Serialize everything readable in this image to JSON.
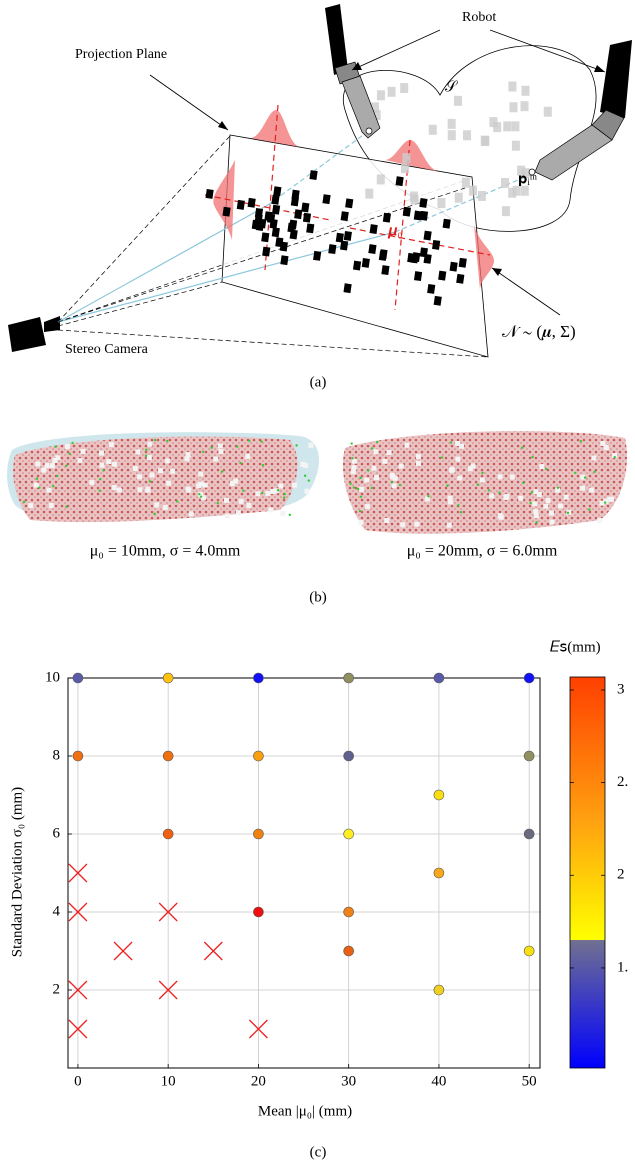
{
  "figure_a": {
    "labels": {
      "projection_plane": "Projection Plane",
      "robot": "Robot",
      "surface": "𝒮",
      "camera": "Stereo Camera",
      "point": "𝐩ᵢᵐ",
      "distribution": "𝒩 ∼ (𝝁, Σ)",
      "mean": "𝝁₀"
    },
    "caption": "(a)"
  },
  "figure_b": {
    "captions": [
      "μ₀ = 10mm, σ = 4.0mm",
      "μ₀ = 20mm, σ = 6.0mm"
    ],
    "caption": "(b)"
  },
  "chart_data": {
    "type": "scatter",
    "caption": "(c)",
    "x_label": "Mean |μ₀| (mm)",
    "y_label": "Standard Deviation σ₀ (mm)",
    "xlim": [
      -1.1,
      51.2
    ],
    "ylim": [
      0,
      10
    ],
    "xticks": [
      0,
      10,
      20,
      30,
      40,
      50
    ],
    "yticks": [
      2,
      4,
      6,
      8,
      10
    ],
    "grid": true,
    "series": [
      {
        "marker": "circle",
        "x": [
          0,
          10,
          20,
          30,
          40,
          50,
          0,
          10,
          20,
          30,
          50,
          40,
          10,
          20,
          30,
          50,
          40,
          20,
          30,
          30,
          50,
          40
        ],
        "y": [
          10,
          10,
          10,
          10,
          10,
          10,
          8,
          8,
          8,
          8,
          8,
          7,
          6,
          6,
          6,
          6,
          5,
          4,
          4,
          3,
          3,
          2
        ],
        "colors": [
          "#5a5aaa",
          "#ffc010",
          "#1010ff",
          "#8f8f60",
          "#5a5aaa",
          "#1010ff",
          "#f07010",
          "#f07010",
          "#f8a010",
          "#606090",
          "#909060",
          "#f8e010",
          "#f06010",
          "#f08010",
          "#ffee20",
          "#6a6a80",
          "#f8a818",
          "#ee1010",
          "#f08018",
          "#e86010",
          "#f8e010",
          "#f0d020"
        ]
      },
      {
        "marker": "cross",
        "color": "#ee2020",
        "x": [
          0,
          0,
          0,
          0,
          5,
          10,
          10,
          15,
          20
        ],
        "y": [
          5,
          4,
          2,
          1,
          3,
          4,
          2,
          3,
          1
        ]
      }
    ],
    "colorbar": {
      "title": "𝐸ꜱ(mm)",
      "lim": [
        0.96,
        3.07
      ],
      "ticks": [
        3,
        {
          "value": 2.5,
          "label": "2."
        },
        2,
        {
          "value": 1.5,
          "label": "1."
        }
      ],
      "colormap": [
        {
          "value": 0.96,
          "color": "#0000ff"
        },
        {
          "value": 1.65,
          "color": "#707090"
        },
        {
          "value": 1.65,
          "color": "#ffff00"
        },
        {
          "value": 2.3,
          "color": "#ffa010"
        },
        {
          "value": 3.07,
          "color": "#ff4000"
        }
      ]
    }
  }
}
